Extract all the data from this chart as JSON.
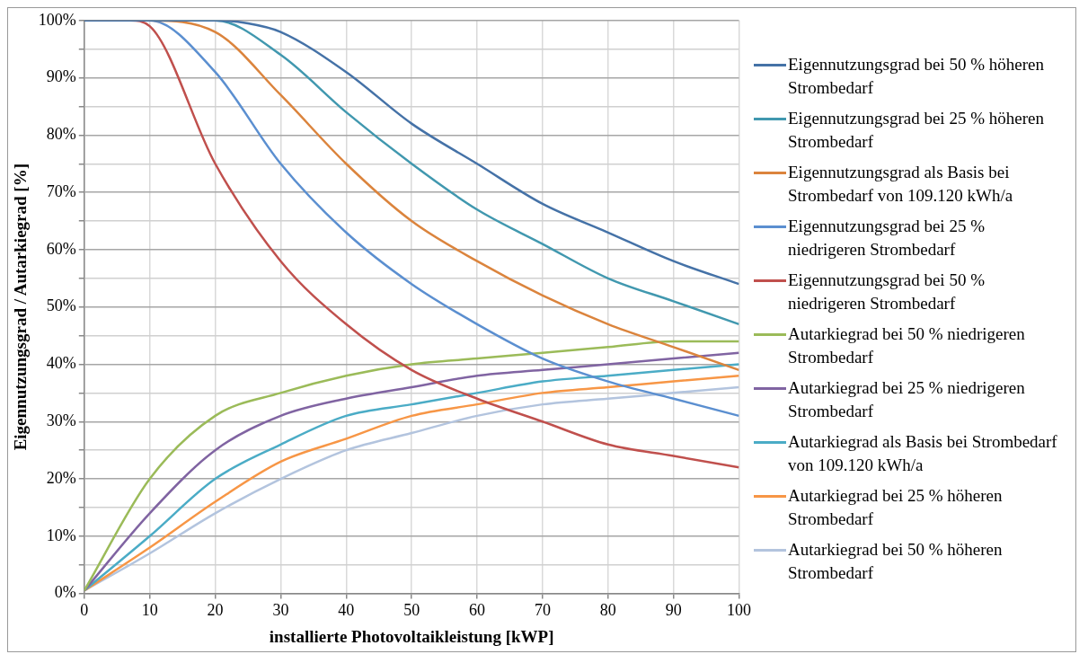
{
  "chart_data": {
    "type": "line",
    "xlabel": "installierte Photovoltaikleistung [kWP]",
    "ylabel": "Eigennutzungsgrad / Autarkiegrad [%]",
    "x": [
      0,
      10,
      20,
      30,
      40,
      50,
      60,
      70,
      80,
      90,
      100
    ],
    "xlim": [
      0,
      100
    ],
    "xticks": [
      0,
      10,
      20,
      30,
      40,
      50,
      60,
      70,
      80,
      90,
      100
    ],
    "ylim": [
      0,
      100
    ],
    "yticks": [
      {
        "value": 0,
        "label": "0%"
      },
      {
        "value": 5,
        "label": null
      },
      {
        "value": 10,
        "label": "10%"
      },
      {
        "value": 15,
        "label": null
      },
      {
        "value": 20,
        "label": "20%"
      },
      {
        "value": 25,
        "label": null
      },
      {
        "value": 30,
        "label": "30%"
      },
      {
        "value": 35,
        "label": null
      },
      {
        "value": 40,
        "label": "40%"
      },
      {
        "value": 45,
        "label": null
      },
      {
        "value": 50,
        "label": "50%"
      },
      {
        "value": 55,
        "label": null
      },
      {
        "value": 60,
        "label": "60%"
      },
      {
        "value": 65,
        "label": null
      },
      {
        "value": 70,
        "label": "70%"
      },
      {
        "value": 75,
        "label": null
      },
      {
        "value": 80,
        "label": "80%"
      },
      {
        "value": 85,
        "label": null
      },
      {
        "value": 90,
        "label": "90%"
      },
      {
        "value": 95,
        "label": null
      },
      {
        "value": 100,
        "label": "100%"
      }
    ],
    "grid": true,
    "legend": "right",
    "marker": "none",
    "line_style": "solid",
    "series": [
      {
        "name": "Eigennutzungsgrad bei 50 % höheren Strombedarf",
        "color": "#4572a7",
        "x": [
          0,
          10,
          20,
          25,
          30,
          40,
          50,
          60,
          70,
          80,
          90,
          100
        ],
        "values": [
          100,
          100,
          100,
          99.5,
          98,
          91,
          82,
          75,
          68,
          63,
          58,
          54
        ]
      },
      {
        "name": "Eigennutzungsgrad bei 25 % höheren Strombedarf",
        "color": "#4198af",
        "values": [
          100,
          100,
          100,
          94,
          84,
          75,
          67,
          61,
          55,
          51,
          47
        ]
      },
      {
        "name": "Eigennutzungsgrad als Basis bei Strombedarf von 109.120 kWh/a",
        "color": "#db843d",
        "values": [
          100,
          100,
          98,
          87,
          75,
          65,
          58,
          52,
          47,
          43,
          39
        ]
      },
      {
        "name": "Eigennutzungsgrad bei 25 % niedrigeren Strombedarf",
        "color": "#5b8fd0",
        "values": [
          100,
          100,
          91,
          75,
          63,
          54,
          47,
          41,
          37,
          34,
          31
        ]
      },
      {
        "name": "Eigennutzungsgrad bei 50 % niedrigeren Strombedarf",
        "color": "#c0504d",
        "x": [
          0,
          7,
          10,
          20,
          30,
          40,
          50,
          60,
          70,
          80,
          90,
          100
        ],
        "values": [
          100,
          100,
          99,
          75,
          58,
          47,
          39,
          34,
          30,
          26,
          24,
          22
        ]
      },
      {
        "name": "Autarkiegrad bei 50 % niedrigeren Strombedarf",
        "color": "#9bbb59",
        "values": [
          0.5,
          20,
          31,
          35,
          38,
          40,
          41,
          42,
          43,
          44,
          44
        ]
      },
      {
        "name": "Autarkiegrad bei 25 % niedrigeren Strombedarf",
        "color": "#8064a2",
        "values": [
          0.5,
          14,
          25,
          31,
          34,
          36,
          38,
          39,
          40,
          41,
          42
        ]
      },
      {
        "name": "Autarkiegrad als Basis bei Strombedarf von 109.120 kWh/a",
        "color": "#4bacc6",
        "values": [
          0.5,
          10,
          20,
          26,
          31,
          33,
          35,
          37,
          38,
          39,
          40
        ]
      },
      {
        "name": "Autarkiegrad bei 25 % höheren Strombedarf",
        "color": "#f79646",
        "values": [
          0.5,
          8,
          16,
          23,
          27,
          31,
          33,
          35,
          36,
          37,
          38
        ]
      },
      {
        "name": "Autarkiegrad bei 50 % höheren Strombedarf",
        "color": "#b3c4de",
        "values": [
          0.5,
          7,
          14,
          20,
          25,
          28,
          31,
          33,
          34,
          35,
          36
        ]
      }
    ]
  }
}
